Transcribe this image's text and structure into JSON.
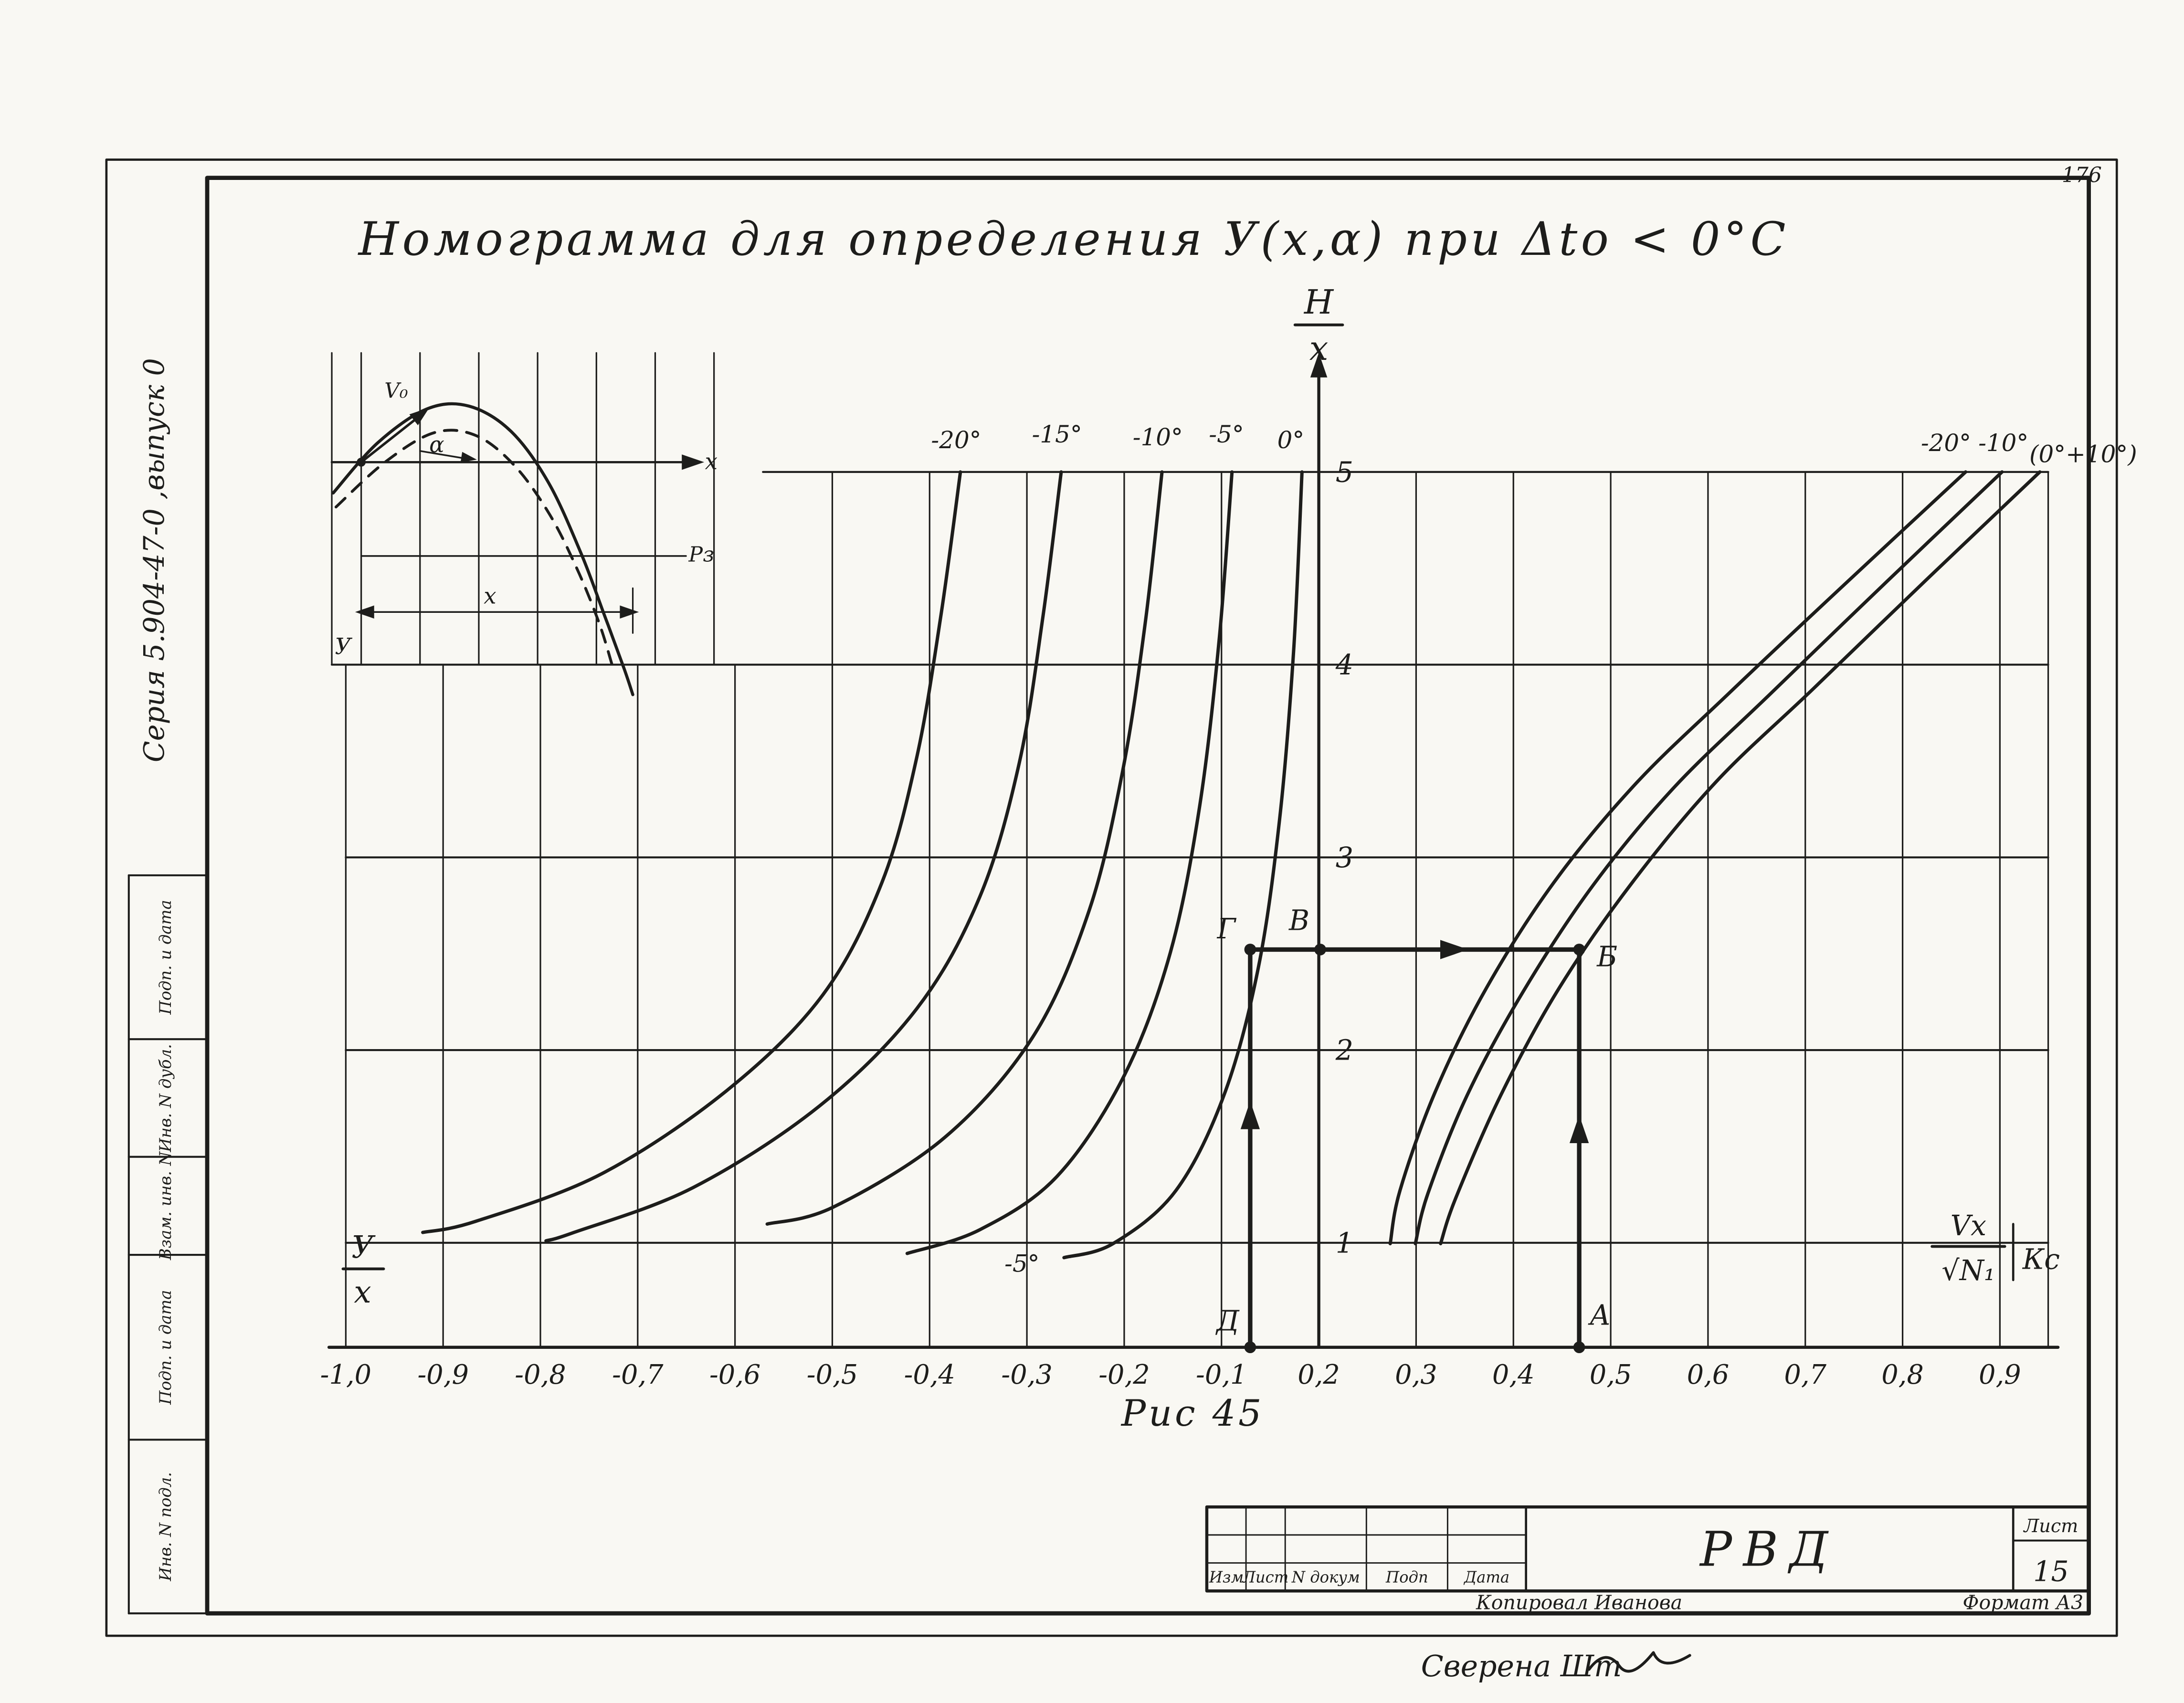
{
  "page": {
    "corner_number": "176",
    "series_label": "Серия 5.904-47-0 ,выпуск 0",
    "checked_note": "Сверена Шт",
    "ink": "#1d1d1b",
    "paper": "#f9f8f3"
  },
  "stamp_column": {
    "labels": [
      "Подп. и дата",
      "Инв. N дубл.",
      "Взам. инв. N",
      "Подп. и дата",
      "Инв. N подл."
    ]
  },
  "title_block": {
    "doc_code": "РВД",
    "sheet_label": "Лист",
    "sheet_number": "15",
    "columns": [
      "Изм",
      "Лист",
      "N докум",
      "Подп",
      "Дата"
    ],
    "copied_by": "Копировал Иванова",
    "format_note": "Формат А3"
  },
  "chart_data": {
    "type": "line",
    "title": "Номограмма  для  определения  У(х,α)  при  Δtо < 0°С",
    "caption": "Рис 45",
    "y_axis": {
      "numerator": "Н",
      "denominator": "х",
      "ticks": [
        "5",
        "4",
        "3",
        "2",
        "1"
      ],
      "values": [
        5,
        4,
        3,
        2,
        1
      ]
    },
    "x_ticks": [
      "-1,0",
      "-0,9",
      "-0,8",
      "-0,7",
      "-0,6",
      "-0,5",
      "-0,4",
      "-0,3",
      "-0,2",
      "-0,1",
      "0,2",
      "0,3",
      "0,4",
      "0,5",
      "0,6",
      "0,7",
      "0,8",
      "0,9"
    ],
    "left_fraction": {
      "numerator": "У",
      "denominator": "х"
    },
    "right_fraction": {
      "numerator": "Vх",
      "denominator": "√N₁",
      "suffix": "Кс"
    },
    "left_curves": [
      {
        "label": "-20°",
        "label_xy": [
          683,
          320
        ],
        "points": [
          [
            686,
            337
          ],
          [
            672,
            440
          ],
          [
            655,
            540
          ],
          [
            630,
            630
          ],
          [
            588,
            710
          ],
          [
            520,
            778
          ],
          [
            430,
            838
          ],
          [
            340,
            872
          ],
          [
            302,
            880
          ]
        ]
      },
      {
        "label": "-15°",
        "label_xy": [
          755,
          316
        ],
        "points": [
          [
            758,
            337
          ],
          [
            745,
            440
          ],
          [
            728,
            545
          ],
          [
            700,
            640
          ],
          [
            655,
            720
          ],
          [
            585,
            790
          ],
          [
            495,
            848
          ],
          [
            410,
            880
          ],
          [
            390,
            886
          ]
        ]
      },
      {
        "label": "-10°",
        "label_xy": [
          827,
          318
        ],
        "points": [
          [
            830,
            337
          ],
          [
            818,
            445
          ],
          [
            802,
            550
          ],
          [
            778,
            650
          ],
          [
            738,
            740
          ],
          [
            675,
            812
          ],
          [
            595,
            862
          ],
          [
            548,
            874
          ]
        ]
      },
      {
        "label": "-5°",
        "label_xy": [
          876,
          316
        ],
        "points": [
          [
            880,
            337
          ],
          [
            871,
            455
          ],
          [
            857,
            575
          ],
          [
            836,
            680
          ],
          [
            803,
            768
          ],
          [
            755,
            840
          ],
          [
            700,
            878
          ],
          [
            648,
            895
          ]
        ]
      },
      {
        "label": "0°",
        "label_xy": [
          922,
          320
        ],
        "points": [
          [
            930,
            337
          ],
          [
            924,
            465
          ],
          [
            914,
            585
          ],
          [
            899,
            690
          ],
          [
            875,
            780
          ],
          [
            840,
            850
          ],
          [
            795,
            888
          ],
          [
            760,
            898
          ]
        ]
      }
    ],
    "bottom_curve_label": {
      "text": "-5°",
      "xy": [
        730,
        908
      ]
    },
    "right_curves": [
      {
        "label": "-20°",
        "label_xy": [
          1390,
          322
        ],
        "points": [
          [
            1404,
            337
          ],
          [
            1320,
            415
          ],
          [
            1235,
            495
          ],
          [
            1168,
            560
          ],
          [
            1110,
            630
          ],
          [
            1062,
            705
          ],
          [
            1025,
            780
          ],
          [
            1000,
            850
          ],
          [
            993,
            888
          ]
        ]
      },
      {
        "label": "-10°",
        "label_xy": [
          1431,
          322
        ],
        "points": [
          [
            1430,
            337
          ],
          [
            1348,
            415
          ],
          [
            1265,
            495
          ],
          [
            1196,
            562
          ],
          [
            1138,
            632
          ],
          [
            1088,
            708
          ],
          [
            1048,
            782
          ],
          [
            1020,
            852
          ],
          [
            1011,
            888
          ]
        ]
      },
      {
        "label": "(0°+10°)",
        "label_xy": [
          1488,
          330
        ],
        "points": [
          [
            1457,
            337
          ],
          [
            1377,
            413
          ],
          [
            1295,
            492
          ],
          [
            1226,
            558
          ],
          [
            1166,
            630
          ],
          [
            1114,
            705
          ],
          [
            1072,
            782
          ],
          [
            1040,
            855
          ],
          [
            1029,
            888
          ]
        ]
      }
    ],
    "construction": {
      "points": [
        {
          "name": "Д",
          "xy": [
            893,
            962
          ],
          "label_xy": [
            877,
            950
          ],
          "dot": true
        },
        {
          "name": "Г",
          "xy": [
            893,
            678
          ],
          "label_xy": [
            876,
            670
          ],
          "dot": true
        },
        {
          "name": "В",
          "xy": [
            943,
            678
          ],
          "label_xy": [
            928,
            664
          ],
          "dot": true
        },
        {
          "name": "Б",
          "xy": [
            1128,
            678
          ],
          "label_xy": [
            1148,
            690
          ],
          "dot": true
        },
        {
          "name": "А",
          "xy": [
            1128,
            962
          ],
          "label_xy": [
            1143,
            946
          ],
          "dot": true
        }
      ],
      "segments": [
        {
          "from": [
            893,
            962
          ],
          "to": [
            893,
            678
          ],
          "arrow_at": [
            893,
            800
          ],
          "arrow_dir": "up"
        },
        {
          "from": [
            893,
            678
          ],
          "to": [
            1128,
            678
          ],
          "arrow_at": [
            1035,
            678
          ],
          "arrow_dir": "right"
        },
        {
          "from": [
            1128,
            962
          ],
          "to": [
            1128,
            678
          ],
          "arrow_at": [
            1128,
            810
          ],
          "arrow_dir": "up"
        }
      ]
    },
    "inset": {
      "v0_label": "V₀",
      "alpha_label": "α",
      "x_axis_label": "х",
      "rz_label": "Рз",
      "dim_label": "х",
      "y_label": "У",
      "solid_curve": [
        [
          238,
          352
        ],
        [
          270,
          316
        ],
        [
          305,
          292
        ],
        [
          335,
          290
        ],
        [
          365,
          308
        ],
        [
          392,
          345
        ],
        [
          415,
          395
        ],
        [
          432,
          440
        ],
        [
          446,
          478
        ],
        [
          452,
          496
        ]
      ],
      "dashed_curve": [
        [
          240,
          362
        ],
        [
          275,
          330
        ],
        [
          310,
          309
        ],
        [
          340,
          311
        ],
        [
          368,
          333
        ],
        [
          393,
          368
        ],
        [
          413,
          408
        ],
        [
          428,
          445
        ],
        [
          437,
          474
        ]
      ]
    }
  }
}
